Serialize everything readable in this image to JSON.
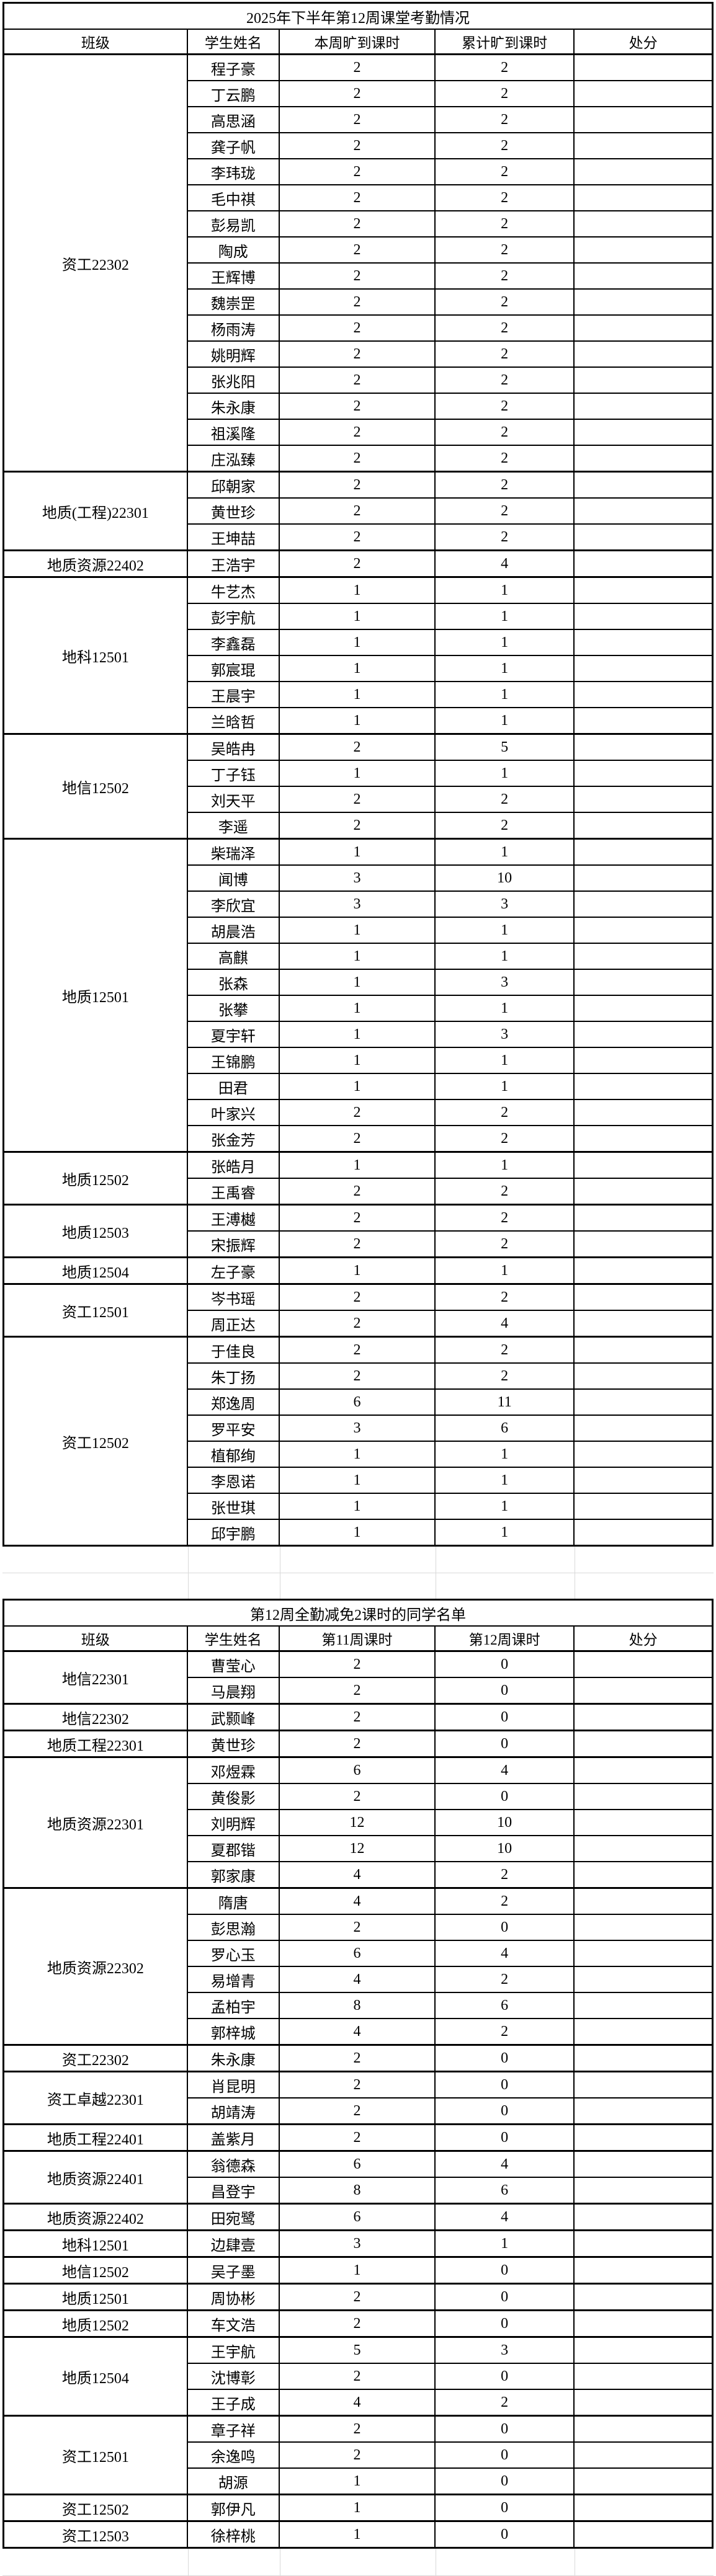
{
  "table1": {
    "title": "2025年下半年第12周课堂考勤情况",
    "headers": [
      "班级",
      "学生姓名",
      "本周旷到课时",
      "累计旷到课时",
      "处分"
    ],
    "groups": [
      {
        "class": "资工22302",
        "students": [
          [
            "程子豪",
            "2",
            "2",
            ""
          ],
          [
            "丁云鹏",
            "2",
            "2",
            ""
          ],
          [
            "高思涵",
            "2",
            "2",
            ""
          ],
          [
            "龚子帆",
            "2",
            "2",
            ""
          ],
          [
            "李玮珑",
            "2",
            "2",
            ""
          ],
          [
            "毛中祺",
            "2",
            "2",
            ""
          ],
          [
            "彭易凯",
            "2",
            "2",
            ""
          ],
          [
            "陶成",
            "2",
            "2",
            ""
          ],
          [
            "王辉博",
            "2",
            "2",
            ""
          ],
          [
            "魏崇罡",
            "2",
            "2",
            ""
          ],
          [
            "杨雨涛",
            "2",
            "2",
            ""
          ],
          [
            "姚明辉",
            "2",
            "2",
            ""
          ],
          [
            "张兆阳",
            "2",
            "2",
            ""
          ],
          [
            "朱永康",
            "2",
            "2",
            ""
          ],
          [
            "祖溪隆",
            "2",
            "2",
            ""
          ],
          [
            "庄泓臻",
            "2",
            "2",
            ""
          ]
        ]
      },
      {
        "class": "地质(工程)22301",
        "students": [
          [
            "邱朝家",
            "2",
            "2",
            ""
          ],
          [
            "黄世珍",
            "2",
            "2",
            ""
          ],
          [
            "王坤喆",
            "2",
            "2",
            ""
          ]
        ]
      },
      {
        "class": "地质资源22402",
        "students": [
          [
            "王浩宇",
            "2",
            "4",
            ""
          ]
        ]
      },
      {
        "class": "地科12501",
        "students": [
          [
            "牛艺杰",
            "1",
            "1",
            ""
          ],
          [
            "彭宇航",
            "1",
            "1",
            ""
          ],
          [
            "李鑫磊",
            "1",
            "1",
            ""
          ],
          [
            "郭宸琨",
            "1",
            "1",
            ""
          ],
          [
            "王晨宇",
            "1",
            "1",
            ""
          ],
          [
            "兰晗哲",
            "1",
            "1",
            ""
          ]
        ]
      },
      {
        "class": "地信12502",
        "students": [
          [
            "吴皓冉",
            "2",
            "5",
            ""
          ],
          [
            "丁子钰",
            "1",
            "1",
            ""
          ],
          [
            "刘天平",
            "2",
            "2",
            ""
          ],
          [
            "李遥",
            "2",
            "2",
            ""
          ]
        ]
      },
      {
        "class": "地质12501",
        "students": [
          [
            "柴瑞泽",
            "1",
            "1",
            ""
          ],
          [
            "闻博",
            "3",
            "10",
            ""
          ],
          [
            "李欣宜",
            "3",
            "3",
            ""
          ],
          [
            "胡晨浩",
            "1",
            "1",
            ""
          ],
          [
            "高麒",
            "1",
            "1",
            ""
          ],
          [
            "张森",
            "1",
            "3",
            ""
          ],
          [
            "张攀",
            "1",
            "1",
            ""
          ],
          [
            "夏宇轩",
            "1",
            "3",
            ""
          ],
          [
            "王锦鹏",
            "1",
            "1",
            ""
          ],
          [
            "田君",
            "1",
            "1",
            ""
          ],
          [
            "叶家兴",
            "2",
            "2",
            ""
          ],
          [
            "张金芳",
            "2",
            "2",
            ""
          ]
        ]
      },
      {
        "class": "地质12502",
        "students": [
          [
            "张皓月",
            "1",
            "1",
            ""
          ],
          [
            "王禹睿",
            "2",
            "2",
            ""
          ]
        ]
      },
      {
        "class": "地质12503",
        "students": [
          [
            "王溥樾",
            "2",
            "2",
            ""
          ],
          [
            "宋振辉",
            "2",
            "2",
            ""
          ]
        ]
      },
      {
        "class": "地质12504",
        "students": [
          [
            "左子豪",
            "1",
            "1",
            ""
          ]
        ]
      },
      {
        "class": "资工12501",
        "students": [
          [
            "岑书瑶",
            "2",
            "2",
            ""
          ],
          [
            "周正达",
            "2",
            "4",
            ""
          ]
        ]
      },
      {
        "class": "资工12502",
        "students": [
          [
            "于佳良",
            "2",
            "2",
            ""
          ],
          [
            "朱丁扬",
            "2",
            "2",
            ""
          ],
          [
            "郑逸周",
            "6",
            "11",
            ""
          ],
          [
            "罗平安",
            "3",
            "6",
            ""
          ],
          [
            "植郁绚",
            "1",
            "1",
            ""
          ],
          [
            "李恩诺",
            "1",
            "1",
            ""
          ],
          [
            "张世琪",
            "1",
            "1",
            ""
          ],
          [
            "邱宇鹏",
            "1",
            "1",
            ""
          ]
        ]
      }
    ]
  },
  "table2": {
    "title": "第12周全勤减免2课时的同学名单",
    "headers": [
      "班级",
      "学生姓名",
      "第11周课时",
      "第12周课时",
      "处分"
    ],
    "groups": [
      {
        "class": "地信22301",
        "students": [
          [
            "曹莹心",
            "2",
            "0",
            ""
          ],
          [
            "马晨翔",
            "2",
            "0",
            ""
          ]
        ]
      },
      {
        "class": "地信22302",
        "students": [
          [
            "武颢峰",
            "2",
            "0",
            ""
          ]
        ]
      },
      {
        "class": "地质工程22301",
        "students": [
          [
            "黄世珍",
            "2",
            "0",
            ""
          ]
        ]
      },
      {
        "class": "地质资源22301",
        "students": [
          [
            "邓煜霖",
            "6",
            "4",
            ""
          ],
          [
            "黄俊影",
            "2",
            "0",
            ""
          ],
          [
            "刘明辉",
            "12",
            "10",
            ""
          ],
          [
            "夏郡锴",
            "12",
            "10",
            ""
          ],
          [
            "郭家康",
            "4",
            "2",
            ""
          ]
        ]
      },
      {
        "class": "地质资源22302",
        "students": [
          [
            "隋唐",
            "4",
            "2",
            ""
          ],
          [
            "彭思瀚",
            "2",
            "0",
            ""
          ],
          [
            "罗心玉",
            "6",
            "4",
            ""
          ],
          [
            "易增青",
            "4",
            "2",
            ""
          ],
          [
            "孟柏宇",
            "8",
            "6",
            ""
          ],
          [
            "郭梓城",
            "4",
            "2",
            ""
          ]
        ]
      },
      {
        "class": "资工22302",
        "students": [
          [
            "朱永康",
            "2",
            "0",
            ""
          ]
        ]
      },
      {
        "class": "资工卓越22301",
        "students": [
          [
            "肖昆明",
            "2",
            "0",
            ""
          ],
          [
            "胡靖涛",
            "2",
            "0",
            ""
          ]
        ]
      },
      {
        "class": "地质工程22401",
        "students": [
          [
            "盖紫月",
            "2",
            "0",
            ""
          ]
        ]
      },
      {
        "class": "地质资源22401",
        "students": [
          [
            "翁德森",
            "6",
            "4",
            ""
          ],
          [
            "昌登宇",
            "8",
            "6",
            ""
          ]
        ]
      },
      {
        "class": "地质资源22402",
        "students": [
          [
            "田宛鹭",
            "6",
            "4",
            ""
          ]
        ]
      },
      {
        "class": "地科12501",
        "students": [
          [
            "边肆壹",
            "3",
            "1",
            ""
          ]
        ]
      },
      {
        "class": "地信12502",
        "students": [
          [
            "吴子墨",
            "1",
            "0",
            ""
          ]
        ]
      },
      {
        "class": "地质12501",
        "students": [
          [
            "周协彬",
            "2",
            "0",
            ""
          ]
        ]
      },
      {
        "class": "地质12502",
        "students": [
          [
            "车文浩",
            "2",
            "0",
            ""
          ]
        ]
      },
      {
        "class": "地质12504",
        "students": [
          [
            "王宇航",
            "5",
            "3",
            ""
          ],
          [
            "沈博彰",
            "2",
            "0",
            ""
          ],
          [
            "王子成",
            "4",
            "2",
            ""
          ]
        ]
      },
      {
        "class": "资工12501",
        "students": [
          [
            "章子祥",
            "2",
            "0",
            ""
          ],
          [
            "余逸鸣",
            "2",
            "0",
            ""
          ],
          [
            "胡源",
            "1",
            "0",
            ""
          ]
        ]
      },
      {
        "class": "资工12502",
        "students": [
          [
            "郭伊凡",
            "1",
            "0",
            ""
          ]
        ]
      },
      {
        "class": "资工12503",
        "students": [
          [
            "徐梓桃",
            "1",
            "0",
            ""
          ]
        ]
      }
    ]
  }
}
